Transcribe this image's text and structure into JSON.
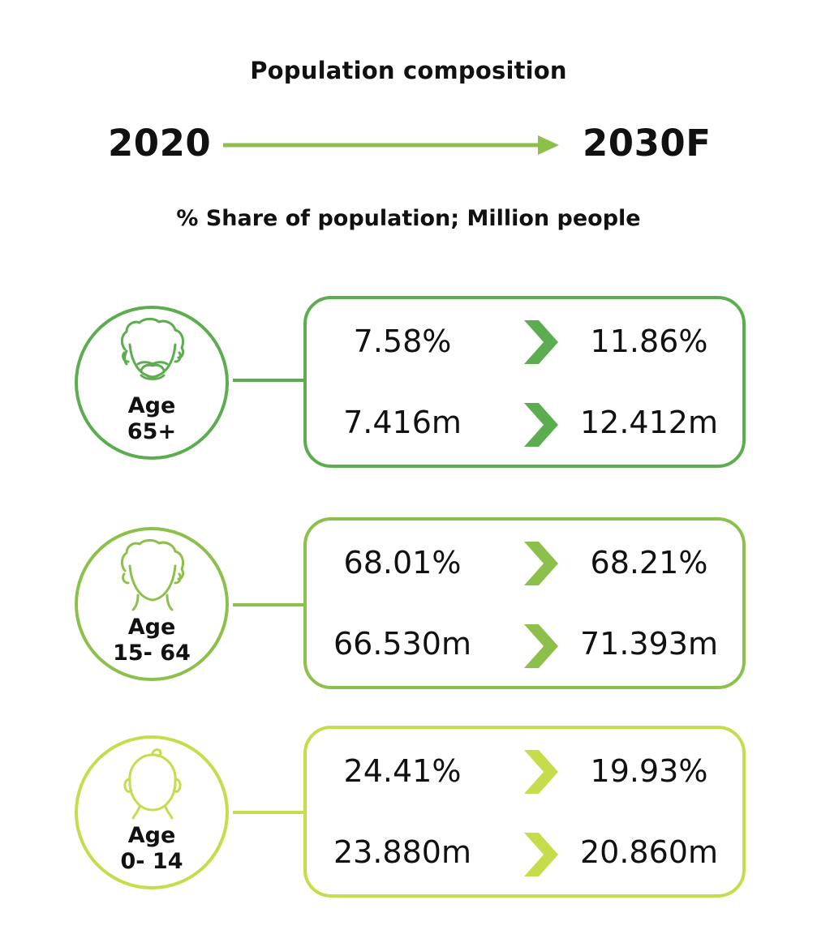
{
  "header": {
    "title": "Population composition",
    "from_year": "2020",
    "to_year": "2030F",
    "subtitle": "% Share of population; Million people"
  },
  "colors": {
    "timeline": "#8cc04b",
    "age65": "#5cad4f",
    "age15": "#8cc04b",
    "age0": "#c7dc4b"
  },
  "groups": [
    {
      "age_line1": "Age",
      "age_line2": "65+",
      "icon": "elderly-face-icon",
      "share_2020": "7.58%",
      "share_2030": "11.86%",
      "people_2020": "7.416m",
      "people_2030": "12.412m"
    },
    {
      "age_line1": "Age",
      "age_line2": "15- 64",
      "icon": "adult-face-icon",
      "share_2020": "68.01%",
      "share_2030": "68.21%",
      "people_2020": "66.530m",
      "people_2030": "71.393m"
    },
    {
      "age_line1": "Age",
      "age_line2": "0- 14",
      "icon": "child-face-icon",
      "share_2020": "24.41%",
      "share_2030": "19.93%",
      "people_2020": "23.880m",
      "people_2030": "20.860m"
    }
  ]
}
